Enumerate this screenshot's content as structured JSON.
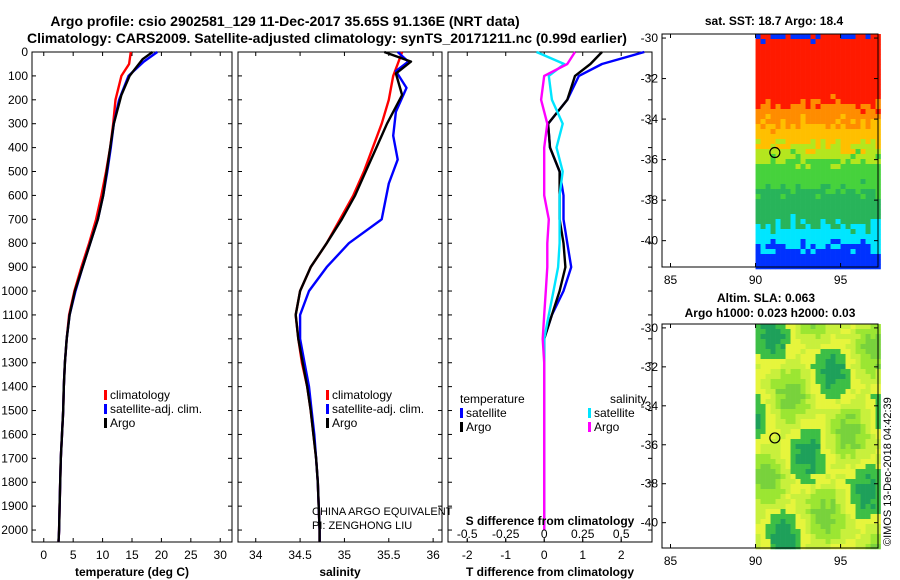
{
  "header": {
    "title_line1": "Argo profile: csio 2902581_129 11-Dec-2017 35.65S 91.136E (NRT data)",
    "title_line2": "Climatology: CARS2009. Satellite-adjusted climatology: synTS_20171211.nc (0.99d earlier)"
  },
  "colors": {
    "climatology": "#ff0000",
    "satellite": "#0000ff",
    "argo": "#000000",
    "satellite_salinity": "#00e5ff",
    "argo_salinity": "#ff00ff"
  },
  "credit": {
    "line1": "CHINA ARGO EQUIVALENT",
    "line2": "PI: ZENGHONG LIU"
  },
  "watermark": "©IMOS 13-Dec-2018 04:42:39",
  "chart_data": [
    {
      "type": "line",
      "panel": "temperature",
      "xlabel": "temperature (deg C)",
      "ylabel": "",
      "xlim": [
        -2,
        32
      ],
      "ylim": [
        2050,
        0
      ],
      "xticks": [
        0,
        5,
        10,
        15,
        20,
        25,
        30
      ],
      "yticks": [
        0,
        100,
        200,
        300,
        400,
        500,
        600,
        700,
        800,
        900,
        1000,
        1100,
        1200,
        1300,
        1400,
        1500,
        1600,
        1700,
        1800,
        1900,
        2000
      ],
      "legend": {
        "placement": "lower-middle",
        "entries": [
          "climatology",
          "satellite-adj. clim.",
          "Argo"
        ]
      },
      "series": [
        {
          "name": "climatology",
          "color": "#ff0000",
          "x": [
            14.8,
            14.5,
            13.2,
            12.2,
            11.8,
            11.3,
            10.6,
            9.8,
            8.9,
            7.7,
            6.4,
            5.2,
            4.3,
            3.9,
            3.6,
            3.4,
            3.3,
            3.1,
            2.9,
            2.8,
            2.7,
            2.6,
            2.5
          ],
          "y": [
            0,
            50,
            100,
            200,
            300,
            400,
            500,
            600,
            700,
            800,
            900,
            1000,
            1100,
            1200,
            1300,
            1400,
            1500,
            1600,
            1700,
            1800,
            1900,
            2000,
            2050
          ]
        },
        {
          "name": "satellite-adj. clim.",
          "color": "#0000ff",
          "x": [
            19.3,
            17.0,
            14.4,
            12.8,
            11.9,
            11.4,
            10.8,
            10.1,
            9.2,
            7.9,
            6.6,
            5.4,
            4.4,
            3.9,
            3.6,
            3.4,
            3.3,
            3.1,
            2.9,
            2.8,
            2.7,
            2.6,
            2.5
          ],
          "y": [
            0,
            40,
            100,
            200,
            300,
            400,
            500,
            600,
            700,
            800,
            900,
            1000,
            1100,
            1200,
            1300,
            1400,
            1500,
            1600,
            1700,
            1800,
            1900,
            2000,
            2050
          ]
        },
        {
          "name": "Argo",
          "color": "#000000",
          "x": [
            18.5,
            16.8,
            14.6,
            13.2,
            11.9,
            11.3,
            10.7,
            10.1,
            9.2,
            7.9,
            6.6,
            5.3,
            4.4,
            3.9,
            3.6,
            3.4,
            3.3,
            3.1,
            2.9,
            2.8,
            2.7,
            2.6,
            2.5
          ],
          "y": [
            0,
            30,
            100,
            180,
            300,
            400,
            500,
            600,
            700,
            800,
            900,
            1000,
            1100,
            1200,
            1300,
            1400,
            1500,
            1600,
            1700,
            1800,
            1900,
            2000,
            2050
          ]
        }
      ]
    },
    {
      "type": "line",
      "panel": "salinity",
      "xlabel": "salinity",
      "ylabel": "",
      "xlim": [
        33.8,
        36.1
      ],
      "ylim": [
        2050,
        0
      ],
      "xticks": [
        34,
        34.5,
        35,
        35.5,
        36
      ],
      "legend": {
        "placement": "lower-middle",
        "entries": [
          "climatology",
          "satellite-adj. clim.",
          "Argo"
        ]
      },
      "series": [
        {
          "name": "climatology",
          "color": "#ff0000",
          "x": [
            35.65,
            35.6,
            35.55,
            35.5,
            35.42,
            35.32,
            35.22,
            35.1,
            34.95,
            34.8,
            34.62,
            34.5,
            34.45,
            34.48,
            34.52,
            34.58,
            34.62,
            34.65,
            34.68,
            34.7,
            34.71,
            34.72,
            34.72
          ],
          "y": [
            0,
            50,
            100,
            200,
            300,
            400,
            500,
            600,
            700,
            800,
            900,
            1000,
            1100,
            1200,
            1300,
            1400,
            1500,
            1600,
            1700,
            1800,
            1900,
            2000,
            2050
          ]
        },
        {
          "name": "satellite-adj. clim.",
          "color": "#0000ff",
          "x": [
            35.6,
            35.72,
            35.58,
            35.7,
            35.58,
            35.55,
            35.6,
            35.5,
            35.42,
            35.05,
            34.8,
            34.6,
            34.5,
            34.5,
            34.55,
            34.6,
            34.63,
            34.66,
            34.68,
            34.7,
            34.71,
            34.72,
            34.72
          ],
          "y": [
            0,
            40,
            80,
            150,
            250,
            350,
            450,
            550,
            700,
            800,
            900,
            1000,
            1100,
            1200,
            1300,
            1400,
            1500,
            1600,
            1700,
            1800,
            1900,
            2000,
            2050
          ]
        },
        {
          "name": "Argo",
          "color": "#000000",
          "x": [
            35.45,
            35.75,
            35.58,
            35.65,
            35.48,
            35.36,
            35.24,
            35.12,
            34.97,
            34.8,
            34.62,
            34.5,
            34.45,
            34.48,
            34.53,
            34.58,
            34.62,
            34.65,
            34.68,
            34.7,
            34.71,
            34.72,
            34.72
          ],
          "y": [
            0,
            40,
            90,
            180,
            300,
            400,
            500,
            600,
            700,
            800,
            900,
            1000,
            1100,
            1200,
            1300,
            1400,
            1500,
            1600,
            1700,
            1800,
            1900,
            2000,
            2050
          ]
        }
      ]
    },
    {
      "type": "line",
      "panel": "difference",
      "xlabel": "T difference from climatology",
      "xlabel_top": "S difference from climatology",
      "xlim": [
        -2.5,
        2.8
      ],
      "x2lim": [
        -0.625,
        0.7
      ],
      "ylim": [
        2050,
        0
      ],
      "xticks": [
        -2,
        -1,
        0,
        1,
        2
      ],
      "x2ticks": [
        -0.5,
        -0.25,
        0,
        0.25,
        0.5
      ],
      "x2ticklabels": [
        "-0.5",
        "-0.25",
        "0",
        "0.25",
        "0.5"
      ],
      "legend": {
        "placement": "lower",
        "temperature_header": "temperature",
        "salinity_header": "salinity",
        "entries": [
          "satellite",
          "Argo",
          "satellite",
          "Argo"
        ]
      },
      "series": [
        {
          "name": "satellite",
          "group": "temperature",
          "axis": "T",
          "color": "#0000ff",
          "x": [
            2.6,
            1.5,
            0.9,
            0.6,
            0.1,
            0.15,
            0.4,
            0.5,
            0.5,
            0.6,
            0.7,
            0.5,
            0.2,
            0.0,
            0.0,
            0.0,
            0.0,
            0.0,
            0.0,
            0.0,
            0.0,
            0.0
          ],
          "y": [
            0,
            50,
            100,
            200,
            300,
            400,
            500,
            600,
            700,
            800,
            900,
            1000,
            1100,
            1200,
            1300,
            1400,
            1500,
            1600,
            1700,
            1800,
            1900,
            2000
          ]
        },
        {
          "name": "Argo",
          "group": "temperature",
          "axis": "T",
          "color": "#000000",
          "x": [
            1.5,
            1.2,
            0.8,
            0.6,
            0.1,
            0.15,
            0.4,
            0.4,
            0.4,
            0.5,
            0.55,
            0.4,
            0.2,
            0.0,
            0.0,
            0.0,
            0.0,
            0.0,
            0.0,
            0.0,
            0.0,
            0.0
          ],
          "y": [
            0,
            50,
            100,
            200,
            300,
            400,
            500,
            600,
            700,
            800,
            900,
            1000,
            1100,
            1200,
            1300,
            1400,
            1500,
            1600,
            1700,
            1800,
            1900,
            2000
          ]
        },
        {
          "name": "satellite",
          "group": "salinity",
          "axis": "S",
          "color": "#00e5ff",
          "x": [
            -0.05,
            0.13,
            0.03,
            0.05,
            0.12,
            0.08,
            0.12,
            0.1,
            0.1,
            0.1,
            0.09,
            0.06,
            0.03,
            0.0,
            0.0,
            0.0,
            0.0,
            0.0,
            0.0,
            0.0,
            0.0,
            0.0
          ],
          "y": [
            0,
            50,
            100,
            200,
            300,
            400,
            500,
            600,
            700,
            800,
            900,
            1000,
            1100,
            1200,
            1300,
            1400,
            1500,
            1600,
            1700,
            1800,
            1900,
            2000
          ]
        },
        {
          "name": "Argo",
          "group": "salinity",
          "axis": "S",
          "color": "#ff00ff",
          "x": [
            0.2,
            0.15,
            0.0,
            -0.02,
            0.02,
            0.0,
            0.0,
            0.0,
            0.03,
            0.02,
            0.02,
            0.01,
            0.0,
            -0.01,
            0.0,
            0.0,
            0.0,
            0.0,
            0.0,
            0.0,
            0.0,
            0.0
          ],
          "y": [
            0,
            50,
            100,
            200,
            300,
            400,
            500,
            600,
            700,
            800,
            900,
            1000,
            1100,
            1200,
            1300,
            1400,
            1500,
            1600,
            1700,
            1800,
            1900,
            2000
          ]
        }
      ]
    },
    {
      "type": "heatmap",
      "panel": "sst_map",
      "title": "sat. SST: 18.7 Argo: 18.4",
      "xlim": [
        84.5,
        97.2
      ],
      "ylim": [
        -41.3,
        -29.8
      ],
      "xticks": [
        85,
        90,
        95
      ],
      "yticks": [
        -30,
        -32,
        -34,
        -36,
        -38,
        -40
      ],
      "data_lon_range": [
        90,
        97.2
      ],
      "argo_position": {
        "lon": 91.136,
        "lat": -35.65
      },
      "zones": [
        {
          "lat_from": -29.8,
          "lat_to": -33.3,
          "color": "#ff1a00"
        },
        {
          "lat_from": -33.3,
          "lat_to": -34.2,
          "color": "#ff8c00"
        },
        {
          "lat_from": -34.2,
          "lat_to": -35.3,
          "color": "#ffbf00"
        },
        {
          "lat_from": -35.3,
          "lat_to": -36.0,
          "color": "#b4e61e"
        },
        {
          "lat_from": -36.0,
          "lat_to": -37.5,
          "color": "#46d23c"
        },
        {
          "lat_from": -37.5,
          "lat_to": -39.2,
          "color": "#28b45a"
        },
        {
          "lat_from": -39.2,
          "lat_to": -40.3,
          "color": "#00e6ff"
        },
        {
          "lat_from": -40.3,
          "lat_to": -41.3,
          "color": "#0032ff"
        }
      ]
    },
    {
      "type": "heatmap",
      "panel": "sla_map",
      "title": "Altim. SLA: 0.063",
      "subtitle": "Argo h1000: 0.023 h2000: 0.03",
      "xlim": [
        84.5,
        97.2
      ],
      "ylim": [
        -41.3,
        -29.8
      ],
      "xticks": [
        85,
        90,
        95
      ],
      "yticks": [
        -30,
        -32,
        -34,
        -36,
        -38,
        -40
      ],
      "data_lon_range": [
        90,
        97.2
      ],
      "argo_position": {
        "lon": 91.136,
        "lat": -35.65
      },
      "palette": [
        "#78d23c",
        "#9be632",
        "#c8f03c",
        "#e6f53c",
        "#3cbe46",
        "#1ea05a"
      ]
    }
  ]
}
